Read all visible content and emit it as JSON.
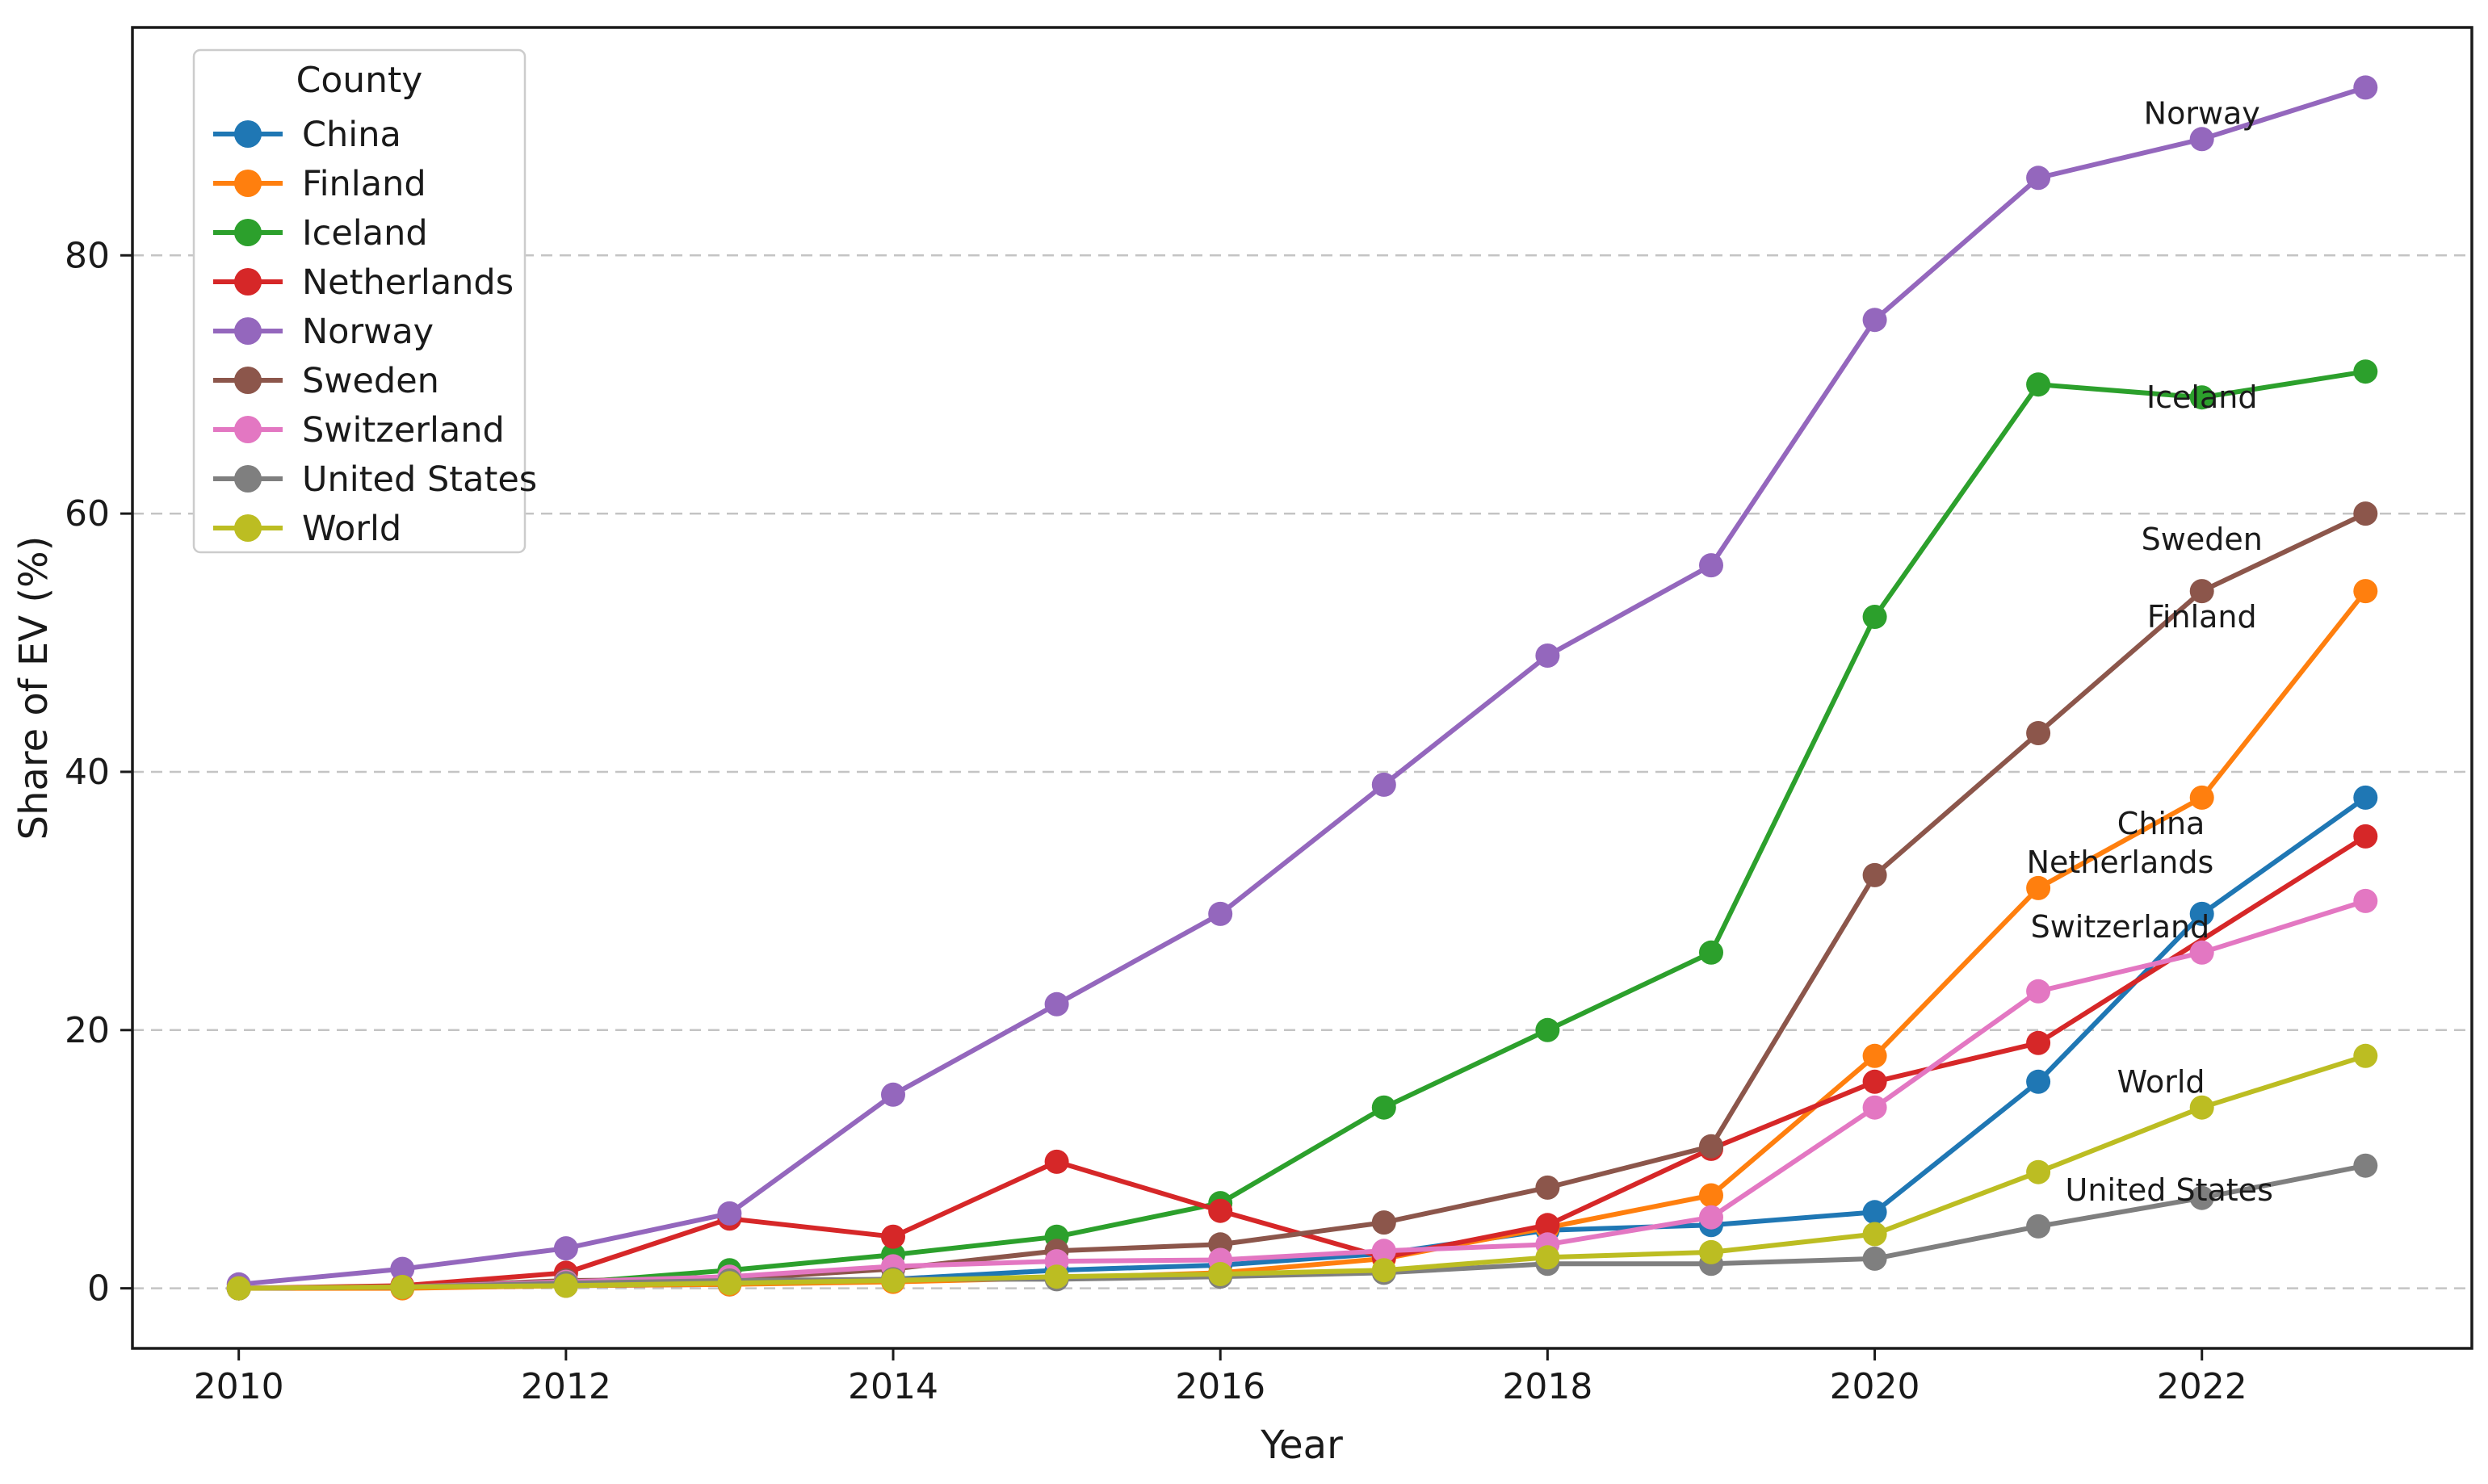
{
  "chart_data": {
    "type": "line",
    "title": "",
    "xlabel": "Year",
    "ylabel": "Share of EV (%)",
    "x": [
      2010,
      2011,
      2012,
      2013,
      2014,
      2015,
      2016,
      2017,
      2018,
      2019,
      2020,
      2021,
      2022,
      2023
    ],
    "xticks": [
      2010,
      2012,
      2014,
      2016,
      2018,
      2020,
      2022
    ],
    "yticks": [
      0,
      20,
      40,
      60,
      80
    ],
    "xlim": [
      2009.35,
      2023.65
    ],
    "ylim": [
      -4.65,
      97.65
    ],
    "grid": "horizontal-dashed",
    "grid_color": "#c4c4c4",
    "spine_color": "#1a1a1a",
    "legend": {
      "title": "County",
      "position": "upper-left",
      "border_color": "#cccccc",
      "background": "#ffffff"
    },
    "series": [
      {
        "name": "China",
        "color": "#1f77b4",
        "values": [
          0.0,
          0.1,
          0.2,
          0.3,
          0.7,
          1.4,
          1.8,
          2.7,
          4.5,
          4.9,
          5.9,
          16,
          29,
          38
        ]
      },
      {
        "name": "Finland",
        "color": "#ff7f0e",
        "values": [
          0.0,
          0.0,
          0.2,
          0.3,
          0.5,
          0.8,
          1.2,
          2.3,
          4.7,
          7.2,
          18,
          31,
          38,
          54
        ]
      },
      {
        "name": "Iceland",
        "color": "#2ca02c",
        "values": [
          0.0,
          0.1,
          0.4,
          1.4,
          2.6,
          4.0,
          6.6,
          14,
          20,
          26,
          52,
          70,
          69,
          71
        ]
      },
      {
        "name": "Netherlands",
        "color": "#d62728",
        "values": [
          0.0,
          0.2,
          1.2,
          5.4,
          4.0,
          9.8,
          6.0,
          2.4,
          4.9,
          10.8,
          16,
          19,
          null,
          35
        ]
      },
      {
        "name": "Norway",
        "color": "#9467bd",
        "values": [
          0.3,
          1.5,
          3.1,
          5.8,
          15,
          22,
          29,
          39,
          49,
          56,
          75,
          86,
          89,
          93
        ]
      },
      {
        "name": "Sweden",
        "color": "#8c564b",
        "values": [
          0.0,
          0.1,
          0.6,
          0.7,
          1.5,
          2.9,
          3.4,
          5.1,
          7.8,
          11,
          32,
          43,
          54,
          60
        ]
      },
      {
        "name": "Switzerland",
        "color": "#e377c2",
        "values": [
          0.0,
          0.1,
          0.5,
          0.9,
          1.7,
          2.1,
          2.2,
          2.9,
          3.4,
          5.5,
          14,
          23,
          26,
          30
        ]
      },
      {
        "name": "United States",
        "color": "#7f7f7f",
        "values": [
          0.0,
          0.1,
          0.4,
          0.6,
          0.7,
          0.7,
          0.9,
          1.2,
          1.9,
          1.9,
          2.3,
          4.8,
          7.0,
          9.5
        ]
      },
      {
        "name": "World",
        "color": "#bcbd22",
        "values": [
          0.0,
          0.1,
          0.2,
          0.4,
          0.6,
          0.9,
          1.1,
          1.4,
          2.4,
          2.8,
          4.2,
          9.0,
          14,
          18
        ]
      }
    ],
    "annotations": [
      {
        "label": "Norway",
        "x": 2022.0,
        "y": 91.0
      },
      {
        "label": "Iceland",
        "x": 2022.0,
        "y": 69.0
      },
      {
        "label": "Sweden",
        "x": 2022.0,
        "y": 58.0
      },
      {
        "label": "Finland",
        "x": 2022.0,
        "y": 52.0
      },
      {
        "label": "China",
        "x": 2021.75,
        "y": 36.0
      },
      {
        "label": "Netherlands",
        "x": 2021.5,
        "y": 33.0
      },
      {
        "label": "Switzerland",
        "x": 2021.5,
        "y": 28.0
      },
      {
        "label": "World",
        "x": 2021.75,
        "y": 16.0
      },
      {
        "label": "United States",
        "x": 2021.8,
        "y": 7.6
      }
    ],
    "annotation_color": "#262626"
  }
}
